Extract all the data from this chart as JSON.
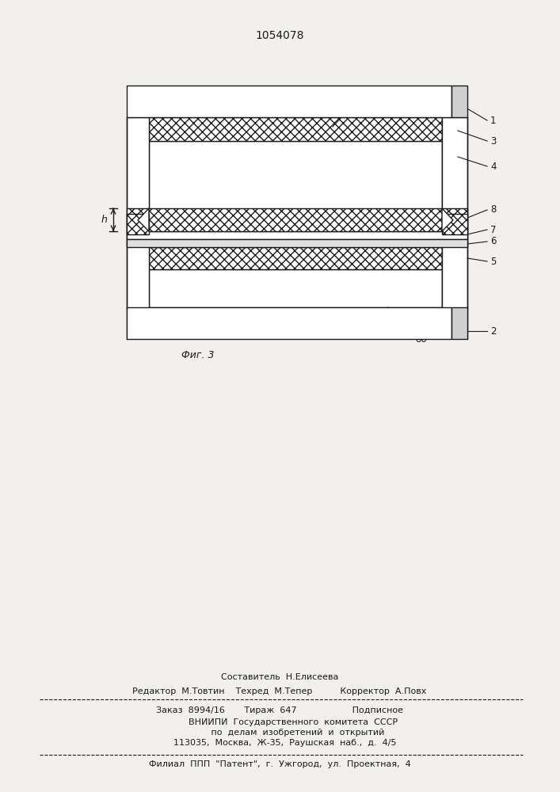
{
  "title": "1054078",
  "fig_label": "Фиг. 3",
  "bg_color": "#f2f0ed",
  "line_color": "#1a1a1a",
  "footer_lines": [
    "Составитель  Н.Елисеева",
    "Редактор  М.Товтин    Техред  М.Тепер          Корректор  А.Повх",
    "Заказ  8994/16       Тираж  647                    Подписное",
    "          ВНИИПИ  Государственного  комитета  СССР",
    "             по  делам  изобретений  и  открытий",
    "    113035,  Москва,  Ж-35,  Раушская  наб.,  д.  4/5",
    "Филиал  ППП  \"Патент\",  г.  Ужгород,  ул.  Проектная,  4"
  ]
}
